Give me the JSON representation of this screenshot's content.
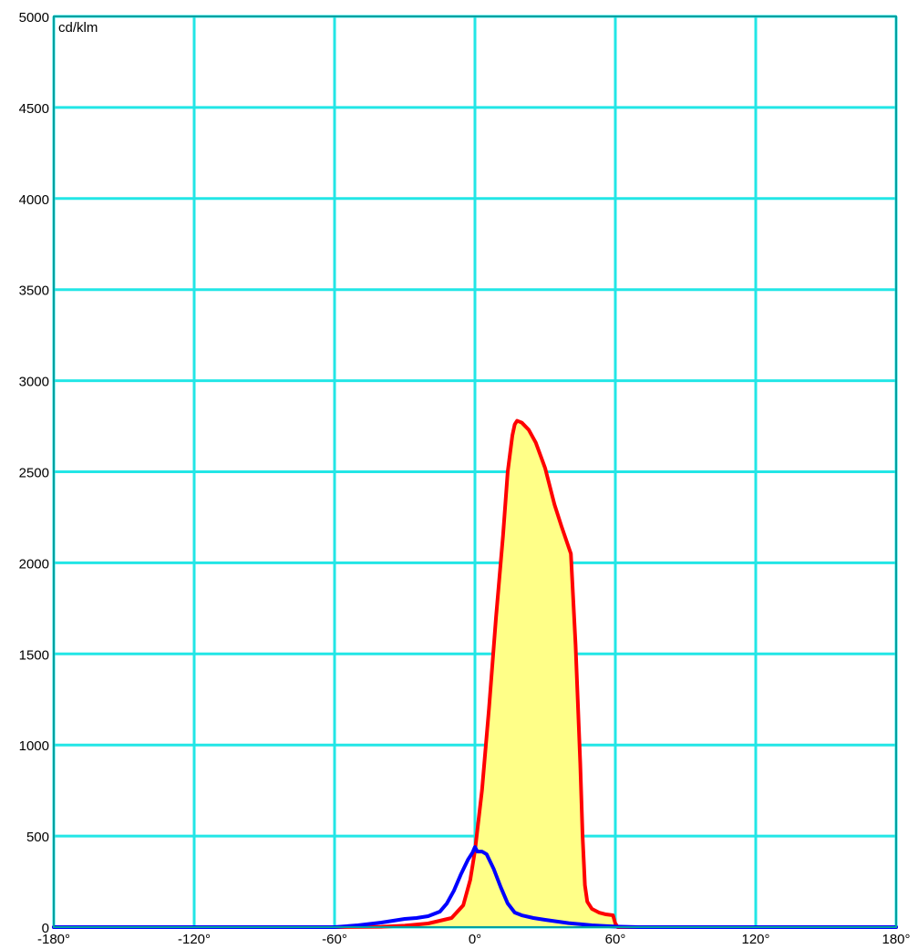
{
  "chart_data": {
    "type": "line",
    "unit_label": "cd/klm",
    "xlim": [
      -180,
      180
    ],
    "ylim": [
      0,
      5000
    ],
    "x_ticks": [
      -180,
      -120,
      -60,
      0,
      60,
      120,
      180
    ],
    "x_tick_labels": [
      "-180°",
      "-120°",
      "-60°",
      "0°",
      "60°",
      "120°",
      "180°"
    ],
    "y_ticks": [
      0,
      500,
      1000,
      1500,
      2000,
      2500,
      3000,
      3500,
      4000,
      4500,
      5000
    ],
    "y_tick_labels": [
      "0",
      "500",
      "1000",
      "1500",
      "2000",
      "2500",
      "3000",
      "3500",
      "4000",
      "4500",
      "5000"
    ],
    "grid": true,
    "colors": {
      "grid": "#22e6e6",
      "border": "#00a0a0",
      "red_series": "#ff0000",
      "blue_series": "#0000ff",
      "fill": "#ffff88"
    },
    "series": [
      {
        "color": "#ff0000",
        "filled": true,
        "points": [
          [
            -180,
            0
          ],
          [
            -60,
            0
          ],
          [
            -40,
            2
          ],
          [
            -30,
            8
          ],
          [
            -20,
            20
          ],
          [
            -10,
            50
          ],
          [
            -5,
            120
          ],
          [
            -2,
            260
          ],
          [
            0,
            420
          ],
          [
            3,
            750
          ],
          [
            6,
            1200
          ],
          [
            9,
            1700
          ],
          [
            12,
            2150
          ],
          [
            14,
            2500
          ],
          [
            16,
            2700
          ],
          [
            17,
            2760
          ],
          [
            18,
            2780
          ],
          [
            20,
            2770
          ],
          [
            23,
            2730
          ],
          [
            26,
            2660
          ],
          [
            30,
            2520
          ],
          [
            34,
            2320
          ],
          [
            37,
            2200
          ],
          [
            41,
            2050
          ],
          [
            43,
            1550
          ],
          [
            45,
            900
          ],
          [
            46,
            500
          ],
          [
            47,
            230
          ],
          [
            48,
            140
          ],
          [
            50,
            100
          ],
          [
            53,
            80
          ],
          [
            56,
            70
          ],
          [
            59,
            65
          ],
          [
            60,
            20
          ],
          [
            61,
            0
          ],
          [
            180,
            0
          ]
        ]
      },
      {
        "color": "#0000ff",
        "filled": false,
        "points": [
          [
            -180,
            0
          ],
          [
            -60,
            0
          ],
          [
            -50,
            10
          ],
          [
            -40,
            25
          ],
          [
            -30,
            45
          ],
          [
            -25,
            50
          ],
          [
            -20,
            60
          ],
          [
            -15,
            85
          ],
          [
            -12,
            130
          ],
          [
            -9,
            200
          ],
          [
            -6,
            290
          ],
          [
            -3,
            370
          ],
          [
            -1,
            410
          ],
          [
            0,
            440
          ],
          [
            1,
            415
          ],
          [
            3,
            415
          ],
          [
            5,
            400
          ],
          [
            8,
            320
          ],
          [
            11,
            220
          ],
          [
            14,
            130
          ],
          [
            17,
            80
          ],
          [
            20,
            65
          ],
          [
            25,
            50
          ],
          [
            30,
            40
          ],
          [
            40,
            22
          ],
          [
            50,
            10
          ],
          [
            60,
            3
          ],
          [
            70,
            0
          ],
          [
            180,
            0
          ]
        ]
      }
    ]
  }
}
